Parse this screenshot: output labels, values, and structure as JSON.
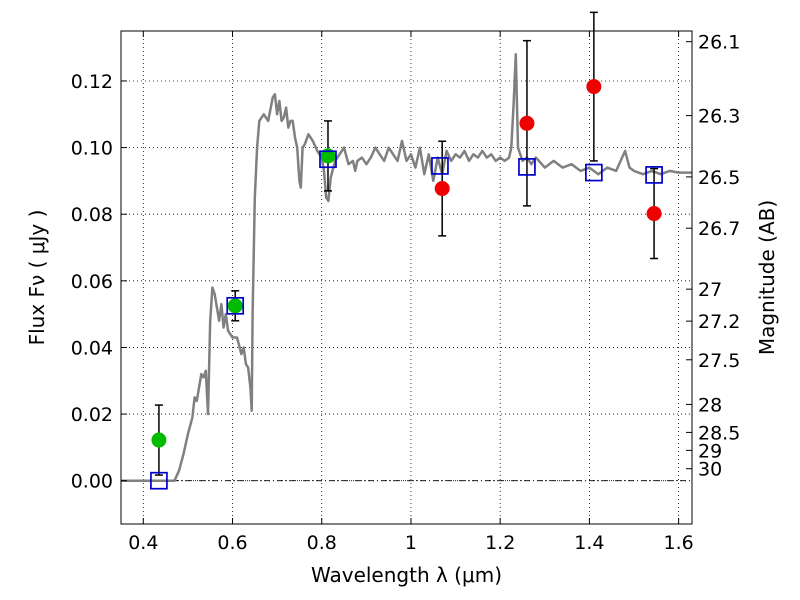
{
  "chart_data": {
    "type": "scatter",
    "xlabel": "Wavelength  λ (μm)",
    "ylabel": "Flux  Fν  ( μJy )",
    "ylabel_right": "Magnitude (AB)",
    "xlim": [
      0.35,
      1.63
    ],
    "ylim": [
      -0.013,
      0.135
    ],
    "grid": true,
    "x_ticks": [
      0.4,
      0.6,
      0.8,
      1.0,
      1.2,
      1.4,
      1.6
    ],
    "x_tick_labels": [
      "0.4",
      "0.6",
      "0.8",
      "1",
      "1.2",
      "1.4",
      "1.6"
    ],
    "y_ticks": [
      0.0,
      0.02,
      0.04,
      0.06,
      0.08,
      0.1,
      0.12
    ],
    "y_tick_labels": [
      "0.00",
      "0.02",
      "0.04",
      "0.06",
      "0.08",
      "0.10",
      "0.12"
    ],
    "mag_ticks": [
      {
        "label": "26.1",
        "flux": 0.1318
      },
      {
        "label": "26.3",
        "flux": 0.1096
      },
      {
        "label": "26.5",
        "flux": 0.0912
      },
      {
        "label": "26.7",
        "flux": 0.0758
      },
      {
        "label": "27",
        "flux": 0.0575
      },
      {
        "label": "27.2",
        "flux": 0.0479
      },
      {
        "label": "27.5",
        "flux": 0.0363
      },
      {
        "label": "28",
        "flux": 0.0229
      },
      {
        "label": "28.5",
        "flux": 0.0145
      },
      {
        "label": "29",
        "flux": 0.0091
      },
      {
        "label": "30",
        "flux": 0.0036
      }
    ],
    "series": [
      {
        "marker": "circle",
        "color": "#00bb00",
        "points": [
          {
            "x": 0.435,
            "y": 0.0122,
            "err": 0.0105
          },
          {
            "x": 0.606,
            "y": 0.0525,
            "err": 0.0045
          },
          {
            "x": 0.814,
            "y": 0.0975,
            "err": 0.0105
          }
        ]
      },
      {
        "marker": "circle",
        "color": "#ee0000",
        "points": [
          {
            "x": 1.07,
            "y": 0.0877,
            "err": 0.0142
          },
          {
            "x": 1.26,
            "y": 0.1073,
            "err": 0.0248
          },
          {
            "x": 1.41,
            "y": 0.1183,
            "err": 0.0223
          },
          {
            "x": 1.545,
            "y": 0.0802,
            "err": 0.0135
          }
        ]
      },
      {
        "marker": "open-square",
        "color": "#0000cc",
        "points": [
          {
            "x": 0.435,
            "y": 0.0
          },
          {
            "x": 0.606,
            "y": 0.0525
          },
          {
            "x": 0.814,
            "y": 0.0965
          },
          {
            "x": 1.065,
            "y": 0.0945
          },
          {
            "x": 1.26,
            "y": 0.0942
          },
          {
            "x": 1.41,
            "y": 0.0925
          },
          {
            "x": 1.545,
            "y": 0.0918
          }
        ]
      }
    ],
    "sed_color": "#808080",
    "sed": [
      [
        0.35,
        0.0
      ],
      [
        0.47,
        0.0
      ],
      [
        0.48,
        0.003
      ],
      [
        0.49,
        0.008
      ],
      [
        0.5,
        0.014
      ],
      [
        0.51,
        0.019
      ],
      [
        0.515,
        0.025
      ],
      [
        0.52,
        0.024
      ],
      [
        0.53,
        0.032
      ],
      [
        0.535,
        0.031
      ],
      [
        0.54,
        0.033
      ],
      [
        0.545,
        0.02
      ],
      [
        0.55,
        0.048
      ],
      [
        0.555,
        0.058
      ],
      [
        0.56,
        0.056
      ],
      [
        0.565,
        0.052
      ],
      [
        0.57,
        0.048
      ],
      [
        0.575,
        0.053
      ],
      [
        0.58,
        0.046
      ],
      [
        0.585,
        0.05
      ],
      [
        0.59,
        0.045
      ],
      [
        0.6,
        0.043
      ],
      [
        0.61,
        0.043
      ],
      [
        0.62,
        0.038
      ],
      [
        0.625,
        0.04
      ],
      [
        0.63,
        0.035
      ],
      [
        0.635,
        0.034
      ],
      [
        0.64,
        0.028
      ],
      [
        0.643,
        0.021
      ],
      [
        0.645,
        0.05
      ],
      [
        0.65,
        0.085
      ],
      [
        0.655,
        0.1
      ],
      [
        0.66,
        0.108
      ],
      [
        0.67,
        0.11
      ],
      [
        0.68,
        0.108
      ],
      [
        0.69,
        0.115
      ],
      [
        0.695,
        0.116
      ],
      [
        0.7,
        0.11
      ],
      [
        0.705,
        0.114
      ],
      [
        0.71,
        0.108
      ],
      [
        0.715,
        0.109
      ],
      [
        0.72,
        0.112
      ],
      [
        0.725,
        0.106
      ],
      [
        0.73,
        0.108
      ],
      [
        0.735,
        0.108
      ],
      [
        0.74,
        0.103
      ],
      [
        0.745,
        0.1
      ],
      [
        0.75,
        0.09
      ],
      [
        0.753,
        0.088
      ],
      [
        0.757,
        0.1
      ],
      [
        0.762,
        0.101
      ],
      [
        0.77,
        0.104
      ],
      [
        0.78,
        0.102
      ],
      [
        0.79,
        0.099
      ],
      [
        0.8,
        0.097
      ],
      [
        0.805,
        0.093
      ],
      [
        0.81,
        0.085
      ],
      [
        0.815,
        0.084
      ],
      [
        0.82,
        0.091
      ],
      [
        0.83,
        0.096
      ],
      [
        0.84,
        0.098
      ],
      [
        0.85,
        0.1
      ],
      [
        0.86,
        0.095
      ],
      [
        0.87,
        0.096
      ],
      [
        0.875,
        0.093
      ],
      [
        0.88,
        0.096
      ],
      [
        0.89,
        0.097
      ],
      [
        0.9,
        0.095
      ],
      [
        0.91,
        0.097
      ],
      [
        0.92,
        0.1
      ],
      [
        0.93,
        0.098
      ],
      [
        0.94,
        0.096
      ],
      [
        0.95,
        0.1
      ],
      [
        0.96,
        0.098
      ],
      [
        0.97,
        0.096
      ],
      [
        0.98,
        0.102
      ],
      [
        0.99,
        0.096
      ],
      [
        1.0,
        0.098
      ],
      [
        1.01,
        0.094
      ],
      [
        1.02,
        0.1
      ],
      [
        1.03,
        0.092
      ],
      [
        1.04,
        0.098
      ],
      [
        1.05,
        0.09
      ],
      [
        1.06,
        0.097
      ],
      [
        1.07,
        0.092
      ],
      [
        1.08,
        0.099
      ],
      [
        1.09,
        0.096
      ],
      [
        1.1,
        0.098
      ],
      [
        1.11,
        0.097
      ],
      [
        1.12,
        0.099
      ],
      [
        1.13,
        0.096
      ],
      [
        1.14,
        0.098
      ],
      [
        1.15,
        0.097
      ],
      [
        1.16,
        0.099
      ],
      [
        1.17,
        0.097
      ],
      [
        1.18,
        0.098
      ],
      [
        1.19,
        0.096
      ],
      [
        1.2,
        0.097
      ],
      [
        1.21,
        0.096
      ],
      [
        1.22,
        0.097
      ],
      [
        1.225,
        0.1
      ],
      [
        1.23,
        0.113
      ],
      [
        1.235,
        0.128
      ],
      [
        1.24,
        0.1
      ],
      [
        1.25,
        0.096
      ],
      [
        1.26,
        0.097
      ],
      [
        1.27,
        0.095
      ],
      [
        1.28,
        0.097
      ],
      [
        1.3,
        0.094
      ],
      [
        1.32,
        0.096
      ],
      [
        1.34,
        0.094
      ],
      [
        1.36,
        0.095
      ],
      [
        1.38,
        0.093
      ],
      [
        1.4,
        0.094
      ],
      [
        1.42,
        0.092
      ],
      [
        1.44,
        0.094
      ],
      [
        1.46,
        0.093
      ],
      [
        1.47,
        0.096
      ],
      [
        1.48,
        0.099
      ],
      [
        1.49,
        0.094
      ],
      [
        1.5,
        0.093
      ],
      [
        1.52,
        0.092
      ],
      [
        1.54,
        0.093
      ],
      [
        1.56,
        0.092
      ],
      [
        1.58,
        0.093
      ],
      [
        1.6,
        0.0925
      ],
      [
        1.63,
        0.0925
      ]
    ]
  }
}
